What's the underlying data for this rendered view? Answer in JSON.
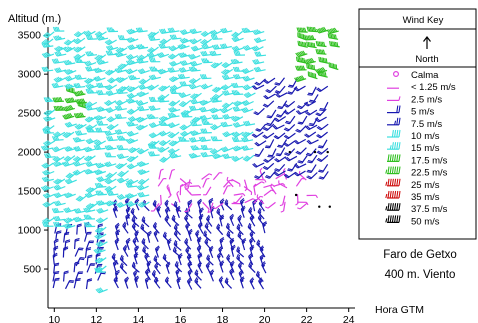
{
  "chart_data": {
    "type": "wind-barb profile (time-height)",
    "ylabel": "Altitud (m.)",
    "xlabel": "Hora GTM",
    "y_ticks": [
      "3500",
      "3000",
      "2500",
      "2000",
      "1500",
      "1000",
      "500"
    ],
    "y_tick_values": [
      3500,
      3000,
      2500,
      2000,
      1500,
      1000,
      500
    ],
    "x_ticks": [
      "10",
      "12",
      "14",
      "16",
      "18",
      "20",
      "22",
      "24"
    ],
    "x_tick_values": [
      10,
      12,
      14,
      16,
      18,
      20,
      22,
      24
    ],
    "ylim": [
      0,
      3900
    ],
    "xlim": [
      9.7,
      24.3
    ],
    "grid": false,
    "station": [
      "Faro de Getxo",
      "400 m. Viento"
    ],
    "legend": {
      "title": "Wind Key",
      "north_label": "North",
      "entries": [
        {
          "label": "Calma",
          "color": "#e040e0"
        },
        {
          "label": "< 1.25 m/s",
          "color": "#e040e0"
        },
        {
          "label": "2.5 m/s",
          "color": "#e040e0"
        },
        {
          "label": "5 m/s",
          "color": "#1818b0"
        },
        {
          "label": "7.5 m/s",
          "color": "#1818b0"
        },
        {
          "label": "10 m/s",
          "color": "#3ee0e0"
        },
        {
          "label": "15 m/s",
          "color": "#3ee0e0"
        },
        {
          "label": "17.5 m/s",
          "color": "#30c020"
        },
        {
          "label": "22.5 m/s",
          "color": "#30c020"
        },
        {
          "label": "25 m/s",
          "color": "#d01010"
        },
        {
          "label": "35 m/s",
          "color": "#d01010"
        },
        {
          "label": "37.5 m/s",
          "color": "#000000"
        },
        {
          "label": "50 m/s",
          "color": "#000000"
        }
      ]
    },
    "speed_classes": [
      1,
      2.5,
      5,
      7.5,
      10,
      15,
      17.5,
      22.5,
      25,
      35,
      37.5,
      50
    ],
    "regions": [
      {
        "t_start": 10,
        "t_end": 14.5,
        "alt_min": 200,
        "alt_max": 3700,
        "speed": 10,
        "direction": "west-southwest"
      },
      {
        "t_start": 14.5,
        "t_end": 20,
        "alt_min": 1900,
        "alt_max": 3700,
        "speed": 10,
        "direction": "west-southwest"
      },
      {
        "t_start": 10,
        "t_end": 12,
        "alt_min": 200,
        "alt_max": 1000,
        "speed": 5,
        "direction": "north"
      },
      {
        "t_start": 13,
        "t_end": 20,
        "alt_min": 200,
        "alt_max": 1300,
        "speed": 7.5,
        "direction": "northwest"
      },
      {
        "t_start": 15,
        "t_end": 22,
        "alt_min": 1300,
        "alt_max": 1700,
        "speed": 2.5,
        "direction": "variable"
      },
      {
        "t_start": 20,
        "t_end": 23,
        "alt_min": 1700,
        "alt_max": 3000,
        "speed": 5,
        "direction": "southwest"
      },
      {
        "t_start": 22,
        "t_end": 23.5,
        "alt_min": 2900,
        "alt_max": 3700,
        "speed": 17.5,
        "direction": "west"
      },
      {
        "t_start": 10.5,
        "t_end": 11.5,
        "alt_min": 2400,
        "alt_max": 2800,
        "speed": 17.5,
        "direction": "west"
      }
    ]
  }
}
